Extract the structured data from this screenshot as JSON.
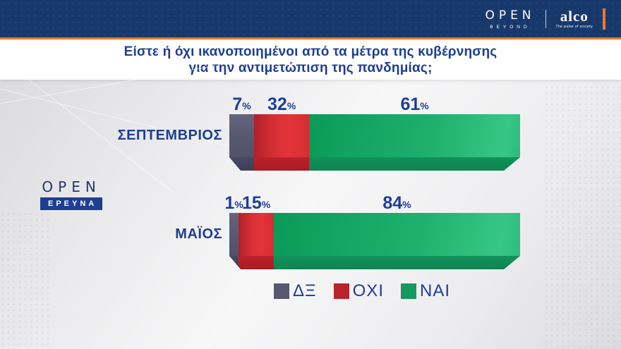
{
  "header": {
    "open_logo": "OPEN",
    "open_sub": "BEYOND",
    "alco_logo": "alco",
    "alco_tagline": "The pulse of society"
  },
  "title": {
    "line1": "Είστε ή όχι ικανοποιημένοι από τα μέτρα της κυβέρνησης",
    "line2": "για την αντιμετώπιση της πανδημίας;"
  },
  "watermark": {
    "brand": "OPEN",
    "badge": "ΕΡΕΥΝΑ"
  },
  "colors": {
    "navy_bar": "#17386b",
    "orange_accent": "#ee7623",
    "title_blue": "#1e3e92",
    "dk_gray": "#565870",
    "oxi_red": "#d32b31",
    "nai_green": "#13a563"
  },
  "chart_data": {
    "type": "bar",
    "orientation": "horizontal-stacked",
    "title": "Είστε ή όχι ικανοποιημένοι από τα μέτρα της κυβέρνησης για την αντιμετώπιση της πανδημίας;",
    "categories": [
      "ΣΕΠΤΕΜΒΡΙΟΣ",
      "ΜΑΪΟΣ"
    ],
    "series": [
      {
        "name": "ΔΞ",
        "color": "#565870",
        "values": [
          7,
          1
        ]
      },
      {
        "name": "ΟΧΙ",
        "color": "#b8242b",
        "values": [
          32,
          15
        ]
      },
      {
        "name": "ΝΑΙ",
        "color": "#169a5f",
        "values": [
          61,
          84
        ]
      }
    ],
    "unit": "%",
    "legend_position": "bottom-center",
    "display_widths_pct": [
      [
        8.5,
        19.0,
        72.5
      ],
      [
        3.2,
        12.1,
        84.7
      ]
    ]
  }
}
